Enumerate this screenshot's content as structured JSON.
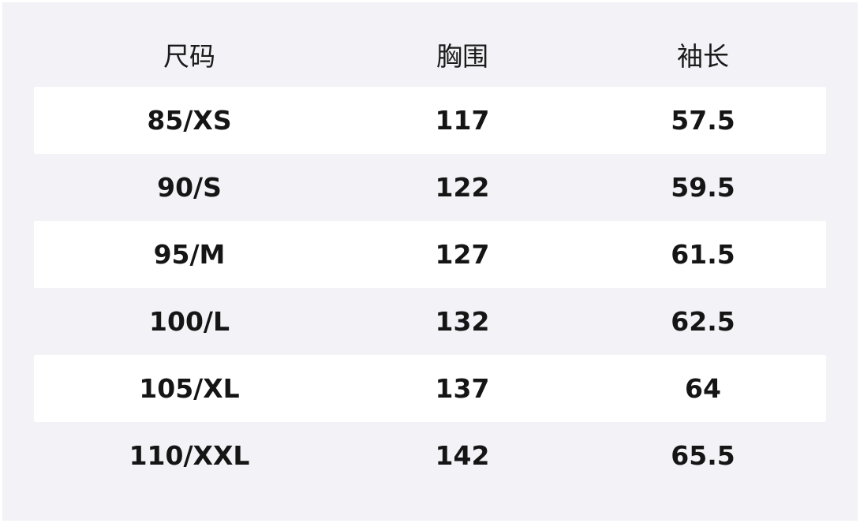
{
  "table": {
    "headers": [
      "尺码",
      "胸围",
      "袖长"
    ],
    "rows": [
      [
        "85/XS",
        "117",
        "57.5"
      ],
      [
        "90/S",
        "122",
        "59.5"
      ],
      [
        "95/M",
        "127",
        "61.5"
      ],
      [
        "100/L",
        "132",
        "62.5"
      ],
      [
        "105/XL",
        "137",
        "64"
      ],
      [
        "110/XXL",
        "142",
        "65.5"
      ]
    ]
  },
  "colors": {
    "background": "#f2f2f7",
    "stripe": "#ffffff",
    "text": "#151515"
  }
}
